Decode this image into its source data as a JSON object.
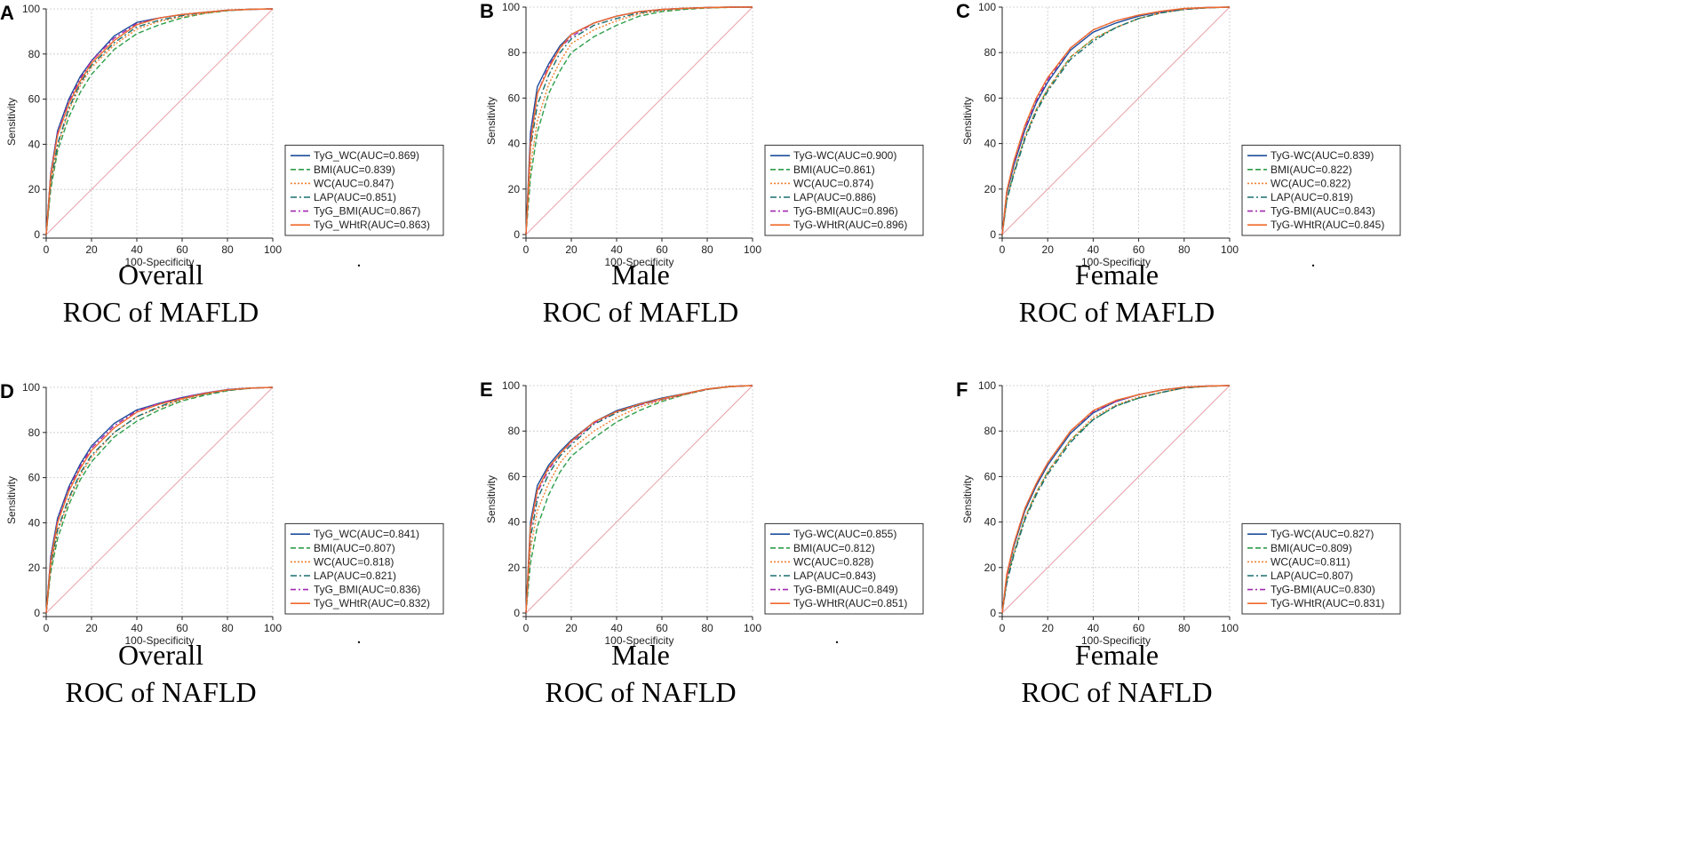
{
  "chart_data": [
    {
      "type": "line",
      "panel": "A",
      "title": "Overall",
      "subtitle": "ROC of MAFLD",
      "xlabel": "100-Specificity",
      "ylabel": "Sensitivity",
      "xlim": [
        0,
        100
      ],
      "ylim": [
        0,
        100
      ],
      "grid": true,
      "legend": "bottom-right",
      "x_ticks": [
        "0",
        "20",
        "40",
        "60",
        "80",
        "100"
      ],
      "y_ticks": [
        "0",
        "20",
        "40",
        "60",
        "80",
        "100"
      ],
      "reference_line": [
        [
          0,
          0
        ],
        [
          100,
          100
        ]
      ],
      "x": [
        0,
        2,
        5,
        10,
        15,
        20,
        30,
        40,
        50,
        60,
        70,
        80,
        90,
        100
      ],
      "series": [
        {
          "name": "TyG_WC(AUC=0.869)",
          "auc": 0.869,
          "values": [
            0,
            27,
            46,
            60,
            70,
            77,
            88,
            94,
            96,
            97.5,
            98.5,
            99.4,
            99.8,
            100
          ]
        },
        {
          "name": "BMI(AUC=0.839)",
          "auc": 0.839,
          "values": [
            0,
            20,
            37,
            52,
            63,
            71,
            82,
            89,
            93,
            96,
            98,
            99.2,
            99.8,
            100
          ]
        },
        {
          "name": "WC(AUC=0.847)",
          "auc": 0.847,
          "values": [
            0,
            22,
            39,
            55,
            66,
            74,
            84,
            91,
            94.5,
            96.5,
            98,
            99.3,
            99.8,
            100
          ]
        },
        {
          "name": "LAP(AUC=0.851)",
          "auc": 0.851,
          "values": [
            0,
            23,
            40,
            56,
            67,
            75,
            85,
            92,
            95,
            97,
            98.5,
            99.3,
            99.8,
            100
          ]
        },
        {
          "name": "TyG_BMI(AUC=0.867)",
          "auc": 0.867,
          "values": [
            0,
            27,
            45,
            59,
            69,
            77,
            87,
            93.5,
            96,
            97.5,
            98.5,
            99.4,
            99.8,
            100
          ]
        },
        {
          "name": "TyG_WHtR(AUC=0.863)",
          "auc": 0.863,
          "values": [
            0,
            26,
            44,
            58,
            68,
            76,
            86,
            93,
            96,
            97.5,
            98.5,
            99.4,
            99.8,
            100
          ]
        }
      ]
    },
    {
      "type": "line",
      "panel": "B",
      "title": "Male",
      "subtitle": "ROC of MAFLD",
      "xlabel": "100-Specificity",
      "ylabel": "Sensitivity",
      "xlim": [
        0,
        100
      ],
      "ylim": [
        0,
        100
      ],
      "grid": true,
      "legend": "bottom-right",
      "x_ticks": [
        "0",
        "20",
        "40",
        "60",
        "80",
        "100"
      ],
      "y_ticks": [
        "0",
        "20",
        "40",
        "60",
        "80",
        "100"
      ],
      "reference_line": [
        [
          0,
          0
        ],
        [
          100,
          100
        ]
      ],
      "x": [
        0,
        2,
        5,
        10,
        15,
        20,
        30,
        40,
        50,
        60,
        70,
        80,
        90,
        100
      ],
      "series": [
        {
          "name": "TyG-WC(AUC=0.900)",
          "auc": 0.9,
          "values": [
            0,
            45,
            65,
            75,
            83,
            88,
            93,
            96,
            98,
            99,
            99.5,
            99.8,
            100,
            100
          ]
        },
        {
          "name": "BMI(AUC=0.861)",
          "auc": 0.861,
          "values": [
            0,
            25,
            45,
            62,
            72,
            80,
            87,
            92,
            96,
            98,
            99,
            99.6,
            99.9,
            100
          ]
        },
        {
          "name": "WC(AUC=0.874)",
          "auc": 0.874,
          "values": [
            0,
            30,
            50,
            66,
            76,
            84,
            90,
            94,
            97,
            98.5,
            99.3,
            99.7,
            99.9,
            100
          ]
        },
        {
          "name": "LAP(AUC=0.886)",
          "auc": 0.886,
          "values": [
            0,
            38,
            57,
            70,
            80,
            86,
            92,
            95,
            97.5,
            98.8,
            99.4,
            99.8,
            100,
            100
          ]
        },
        {
          "name": "TyG-BMI(AUC=0.896)",
          "auc": 0.896,
          "values": [
            0,
            42,
            62,
            74,
            82,
            87,
            93,
            96,
            98,
            99,
            99.5,
            99.8,
            100,
            100
          ]
        },
        {
          "name": "TyG-WHtR(AUC=0.896)",
          "auc": 0.896,
          "values": [
            0,
            40,
            62,
            73,
            82,
            88,
            93,
            96,
            98,
            99,
            99.5,
            99.8,
            100,
            100
          ]
        }
      ]
    },
    {
      "type": "line",
      "panel": "C",
      "title": "Female",
      "subtitle": "ROC of MAFLD",
      "xlabel": "100-Specificity",
      "ylabel": "Sensitivity",
      "xlim": [
        0,
        100
      ],
      "ylim": [
        0,
        100
      ],
      "grid": true,
      "legend": "bottom-right",
      "x_ticks": [
        "0",
        "20",
        "40",
        "60",
        "80",
        "100"
      ],
      "y_ticks": [
        "0",
        "20",
        "40",
        "60",
        "80",
        "100"
      ],
      "reference_line": [
        [
          0,
          0
        ],
        [
          100,
          100
        ]
      ],
      "x": [
        0,
        2,
        5,
        10,
        15,
        20,
        30,
        40,
        50,
        60,
        70,
        80,
        90,
        100
      ],
      "series": [
        {
          "name": "TyG-WC(AUC=0.839)",
          "auc": 0.839,
          "values": [
            0,
            18,
            30,
            46,
            58,
            67,
            81,
            89,
            93,
            96,
            98,
            99.3,
            99.8,
            100
          ]
        },
        {
          "name": "BMI(AUC=0.822)",
          "auc": 0.822,
          "values": [
            0,
            15,
            27,
            43,
            55,
            64,
            78,
            86,
            91,
            95,
            97.5,
            99,
            99.7,
            100
          ]
        },
        {
          "name": "WC(AUC=0.822)",
          "auc": 0.822,
          "values": [
            0,
            15,
            27,
            43,
            55,
            64,
            78,
            86,
            91,
            95,
            97.5,
            99,
            99.7,
            100
          ]
        },
        {
          "name": "LAP(AUC=0.819)",
          "auc": 0.819,
          "values": [
            0,
            15,
            26,
            42,
            54,
            63,
            77,
            85,
            91,
            95,
            97.5,
            99,
            99.7,
            100
          ]
        },
        {
          "name": "TyG-BMI(AUC=0.843)",
          "auc": 0.843,
          "values": [
            0,
            19,
            31,
            47,
            59,
            68,
            82,
            90,
            94,
            96.5,
            98,
            99.3,
            99.8,
            100
          ]
        },
        {
          "name": "TyG-WHtR(AUC=0.845)",
          "auc": 0.845,
          "values": [
            0,
            19,
            32,
            48,
            60,
            69,
            82,
            90,
            94,
            96.5,
            98.2,
            99.4,
            99.8,
            100
          ]
        }
      ]
    },
    {
      "type": "line",
      "panel": "D",
      "title": "Overall",
      "subtitle": "ROC of NAFLD",
      "xlabel": "100-Specificity",
      "ylabel": "Sensitivity",
      "xlim": [
        0,
        100
      ],
      "ylim": [
        0,
        100
      ],
      "grid": true,
      "legend": "bottom-right",
      "x_ticks": [
        "0",
        "20",
        "40",
        "60",
        "80",
        "100"
      ],
      "y_ticks": [
        "0",
        "20",
        "40",
        "60",
        "80",
        "100"
      ],
      "reference_line": [
        [
          0,
          0
        ],
        [
          100,
          100
        ]
      ],
      "x": [
        0,
        2,
        5,
        10,
        15,
        20,
        30,
        40,
        50,
        60,
        70,
        80,
        90,
        100
      ],
      "series": [
        {
          "name": "TyG_WC(AUC=0.841)",
          "auc": 0.841,
          "values": [
            0,
            25,
            42,
            56,
            66,
            74,
            84,
            90,
            93,
            95.5,
            97.5,
            99,
            99.7,
            100
          ]
        },
        {
          "name": "BMI(AUC=0.807)",
          "auc": 0.807,
          "values": [
            0,
            18,
            33,
            48,
            59,
            67,
            78,
            85,
            90,
            94,
            96.5,
            98.5,
            99.6,
            100
          ]
        },
        {
          "name": "WC(AUC=0.818)",
          "auc": 0.818,
          "values": [
            0,
            20,
            36,
            50,
            61,
            69,
            80,
            87,
            91,
            94.5,
            97,
            98.7,
            99.6,
            100
          ]
        },
        {
          "name": "LAP(AUC=0.821)",
          "auc": 0.821,
          "values": [
            0,
            21,
            37,
            51,
            62,
            70,
            80,
            87,
            91.5,
            95,
            97,
            98.7,
            99.6,
            100
          ]
        },
        {
          "name": "TyG_BMI(AUC=0.836)",
          "auc": 0.836,
          "values": [
            0,
            24,
            41,
            55,
            65,
            73,
            83,
            89.5,
            93,
            95.5,
            97.5,
            99,
            99.7,
            100
          ]
        },
        {
          "name": "TyG_WHtR(AUC=0.832)",
          "auc": 0.832,
          "values": [
            0,
            23,
            40,
            54,
            64,
            72,
            82,
            89,
            92.5,
            95,
            97.3,
            98.9,
            99.7,
            100
          ]
        }
      ]
    },
    {
      "type": "line",
      "panel": "E",
      "title": "Male",
      "subtitle": "ROC of NAFLD",
      "xlabel": "100-Specificity",
      "ylabel": "Sensitivity",
      "xlim": [
        0,
        100
      ],
      "ylim": [
        0,
        100
      ],
      "grid": true,
      "legend": "bottom-right",
      "x_ticks": [
        "0",
        "20",
        "40",
        "60",
        "80",
        "100"
      ],
      "y_ticks": [
        "0",
        "20",
        "40",
        "60",
        "80",
        "100"
      ],
      "reference_line": [
        [
          0,
          0
        ],
        [
          100,
          100
        ]
      ],
      "x": [
        0,
        2,
        5,
        10,
        15,
        20,
        30,
        40,
        50,
        60,
        70,
        80,
        90,
        100
      ],
      "series": [
        {
          "name": "TyG-WC(AUC=0.855)",
          "auc": 0.855,
          "values": [
            0,
            40,
            56,
            65,
            71,
            76,
            84,
            89,
            92,
            94.5,
            96.5,
            98.5,
            99.6,
            100
          ]
        },
        {
          "name": "BMI(AUC=0.812)",
          "auc": 0.812,
          "values": [
            0,
            22,
            38,
            52,
            62,
            69,
            77,
            84,
            89,
            93,
            96,
            98.3,
            99.5,
            100
          ]
        },
        {
          "name": "WC(AUC=0.828)",
          "auc": 0.828,
          "values": [
            0,
            28,
            45,
            57,
            66,
            72,
            80,
            86,
            90.5,
            93.5,
            96,
            98.3,
            99.5,
            100
          ]
        },
        {
          "name": "LAP(AUC=0.843)",
          "auc": 0.843,
          "values": [
            0,
            33,
            50,
            61,
            69,
            74,
            83,
            88,
            91.5,
            94,
            96.3,
            98.4,
            99.6,
            100
          ]
        },
        {
          "name": "TyG-BMI(AUC=0.849)",
          "auc": 0.849,
          "values": [
            0,
            37,
            53,
            63,
            70,
            75,
            83.5,
            88.5,
            91.5,
            94,
            96.3,
            98.4,
            99.6,
            100
          ]
        },
        {
          "name": "TyG-WHtR(AUC=0.851)",
          "auc": 0.851,
          "values": [
            0,
            38,
            54,
            64,
            70,
            75.5,
            84,
            88.5,
            91.8,
            94.2,
            96.4,
            98.5,
            99.6,
            100
          ]
        }
      ]
    },
    {
      "type": "line",
      "panel": "F",
      "title": "Female",
      "subtitle": "ROC of NAFLD",
      "xlabel": "100-Specificity",
      "ylabel": "Sensitivity",
      "xlim": [
        0,
        100
      ],
      "ylim": [
        0,
        100
      ],
      "grid": true,
      "legend": "bottom-right",
      "x_ticks": [
        "0",
        "20",
        "40",
        "60",
        "80",
        "100"
      ],
      "y_ticks": [
        "0",
        "20",
        "40",
        "60",
        "80",
        "100"
      ],
      "reference_line": [
        [
          0,
          0
        ],
        [
          100,
          100
        ]
      ],
      "x": [
        0,
        2,
        5,
        10,
        15,
        20,
        30,
        40,
        50,
        60,
        70,
        80,
        90,
        100
      ],
      "series": [
        {
          "name": "TyG-WC(AUC=0.827)",
          "auc": 0.827,
          "values": [
            0,
            16,
            29,
            45,
            56,
            65,
            79,
            88,
            93,
            96,
            98,
            99.3,
            99.8,
            100
          ]
        },
        {
          "name": "BMI(AUC=0.809)",
          "auc": 0.809,
          "values": [
            0,
            14,
            26,
            42,
            53,
            62,
            76,
            85,
            91,
            94.5,
            97,
            99,
            99.7,
            100
          ]
        },
        {
          "name": "WC(AUC=0.811)",
          "auc": 0.811,
          "values": [
            0,
            14,
            26,
            42,
            53,
            62,
            76,
            86,
            91.5,
            95,
            97,
            99,
            99.7,
            100
          ]
        },
        {
          "name": "LAP(AUC=0.807)",
          "auc": 0.807,
          "values": [
            0,
            13,
            25,
            41,
            52,
            61,
            75,
            85,
            91,
            94.5,
            97,
            99,
            99.7,
            100
          ]
        },
        {
          "name": "TyG-BMI(AUC=0.830)",
          "auc": 0.83,
          "values": [
            0,
            16,
            30,
            46,
            57,
            66,
            80,
            88.5,
            93,
            96,
            98,
            99.3,
            99.8,
            100
          ]
        },
        {
          "name": "TyG-WHtR(AUC=0.831)",
          "auc": 0.831,
          "values": [
            0,
            17,
            30,
            46,
            57,
            66,
            80,
            89,
            93.5,
            96,
            98,
            99.3,
            99.8,
            100
          ]
        }
      ]
    }
  ],
  "series_colors": [
    "#1f4e9b",
    "#2e9e4a",
    "#f08030",
    "#1a6e6e",
    "#a02ab0",
    "#ef6a2c"
  ],
  "series_dash": [
    "",
    "6,3",
    "2,2",
    "7,3,2,3",
    "6,3,2,3",
    ""
  ],
  "reference_color": "#e8a0a8",
  "grid_color": "#c8c8c8",
  "separator_dots": [
    "A",
    "C",
    "D",
    "E"
  ],
  "dot_text": "."
}
